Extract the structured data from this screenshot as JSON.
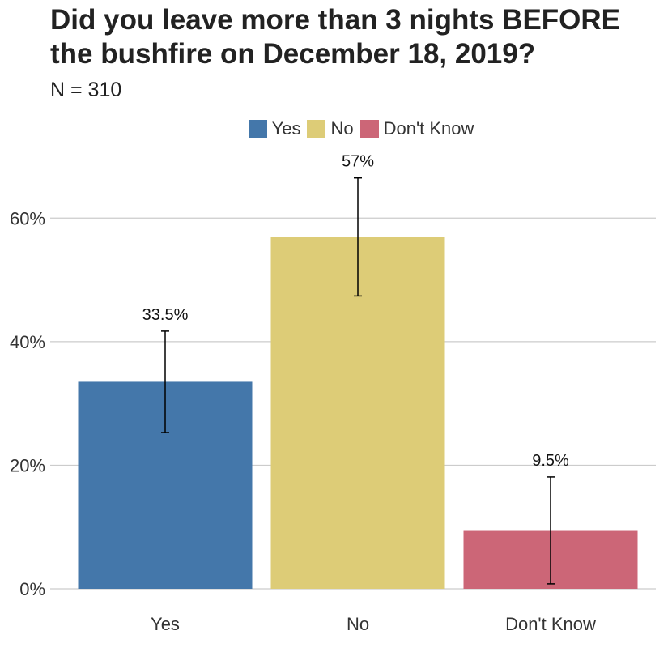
{
  "chart_data": {
    "type": "bar",
    "title": "Did you leave more than 3 nights BEFORE the bushfire on December 18, 2019?",
    "subtitle": "N = 310",
    "categories": [
      "Yes",
      "No",
      "Don't Know"
    ],
    "values": [
      33.5,
      57,
      9.5
    ],
    "value_labels": [
      "33.5%",
      "57%",
      "9.5%"
    ],
    "error_bars": [
      {
        "low": 25.3,
        "high": 41.7
      },
      {
        "low": 47.4,
        "high": 66.5
      },
      {
        "low": 0.8,
        "high": 18.1
      }
    ],
    "colors": [
      "#4477aa",
      "#ddcc77",
      "#cc6677"
    ],
    "legend": [
      {
        "label": "Yes",
        "color": "#4477aa"
      },
      {
        "label": "No",
        "color": "#ddcc77"
      },
      {
        "label": "Don't Know",
        "color": "#cc6677"
      }
    ],
    "legend_position": "top",
    "ylim": [
      0,
      70
    ],
    "yticks": [
      0,
      20,
      40,
      60
    ],
    "ytick_labels": [
      "0%",
      "20%",
      "40%",
      "60%"
    ],
    "grid": "horizontal",
    "xlabel": "",
    "ylabel": ""
  }
}
